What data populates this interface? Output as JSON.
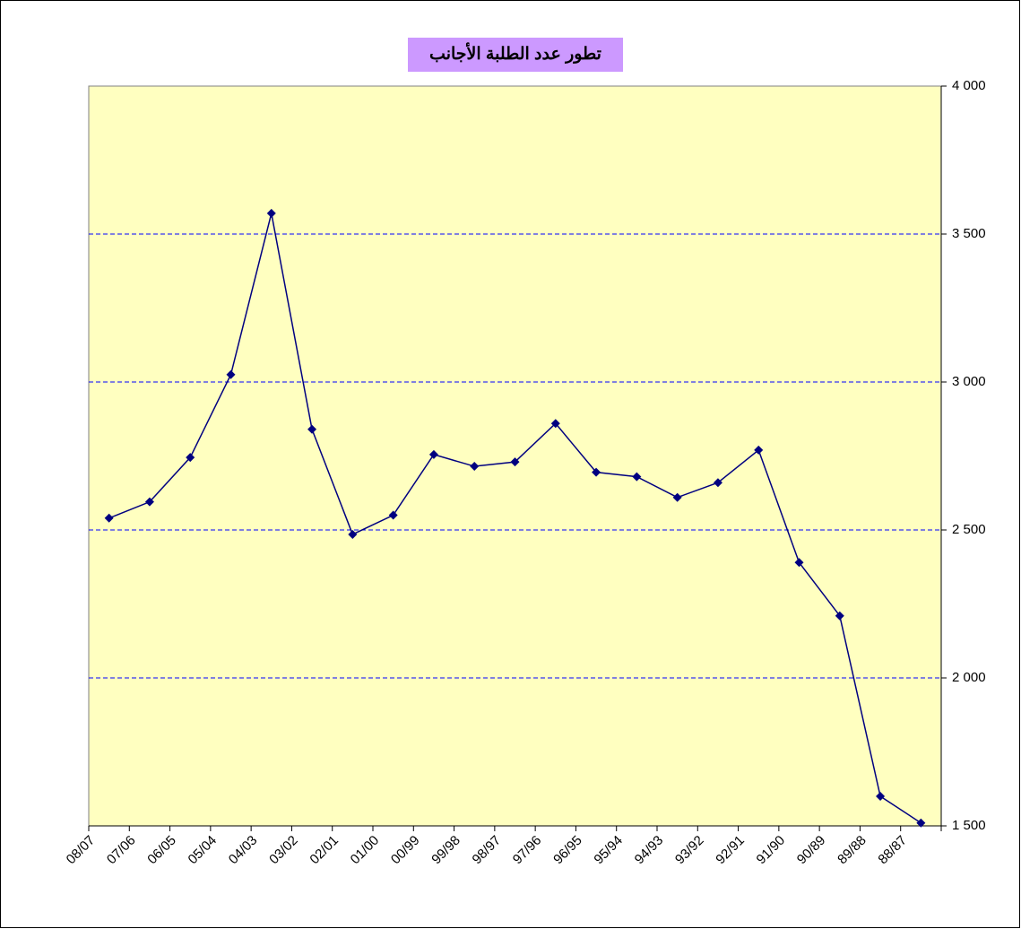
{
  "chart_data": {
    "type": "line",
    "title": "تطور عدد الطلبة الأجانب",
    "categories": [
      "08/07",
      "07/06",
      "06/05",
      "05/04",
      "04/03",
      "03/02",
      "02/01",
      "01/00",
      "00/99",
      "99/98",
      "98/97",
      "97/96",
      "96/95",
      "95/94",
      "94/93",
      "93/92",
      "92/91",
      "91/90",
      "90/89",
      "89/88",
      "88/87"
    ],
    "series": [
      {
        "name": "",
        "color": "#000080",
        "values": [
          2540,
          2595,
          2745,
          3025,
          3570,
          2840,
          2485,
          2550,
          2755,
          2715,
          2730,
          2860,
          2695,
          2680,
          2610,
          2660,
          2770,
          2390,
          2210,
          1600,
          1510
        ]
      }
    ],
    "ylim": [
      1500,
      4000
    ],
    "yticks": [
      {
        "value": 1500,
        "label": "1 500"
      },
      {
        "value": 2000,
        "label": "2 000"
      },
      {
        "value": 2500,
        "label": "2 500"
      },
      {
        "value": 3000,
        "label": "3 000"
      },
      {
        "value": 3500,
        "label": "3 500"
      },
      {
        "value": 4000,
        "label": "4 000"
      }
    ],
    "grid": true,
    "plot_background": "#ffffc0",
    "title_background": "#cc99ff"
  }
}
